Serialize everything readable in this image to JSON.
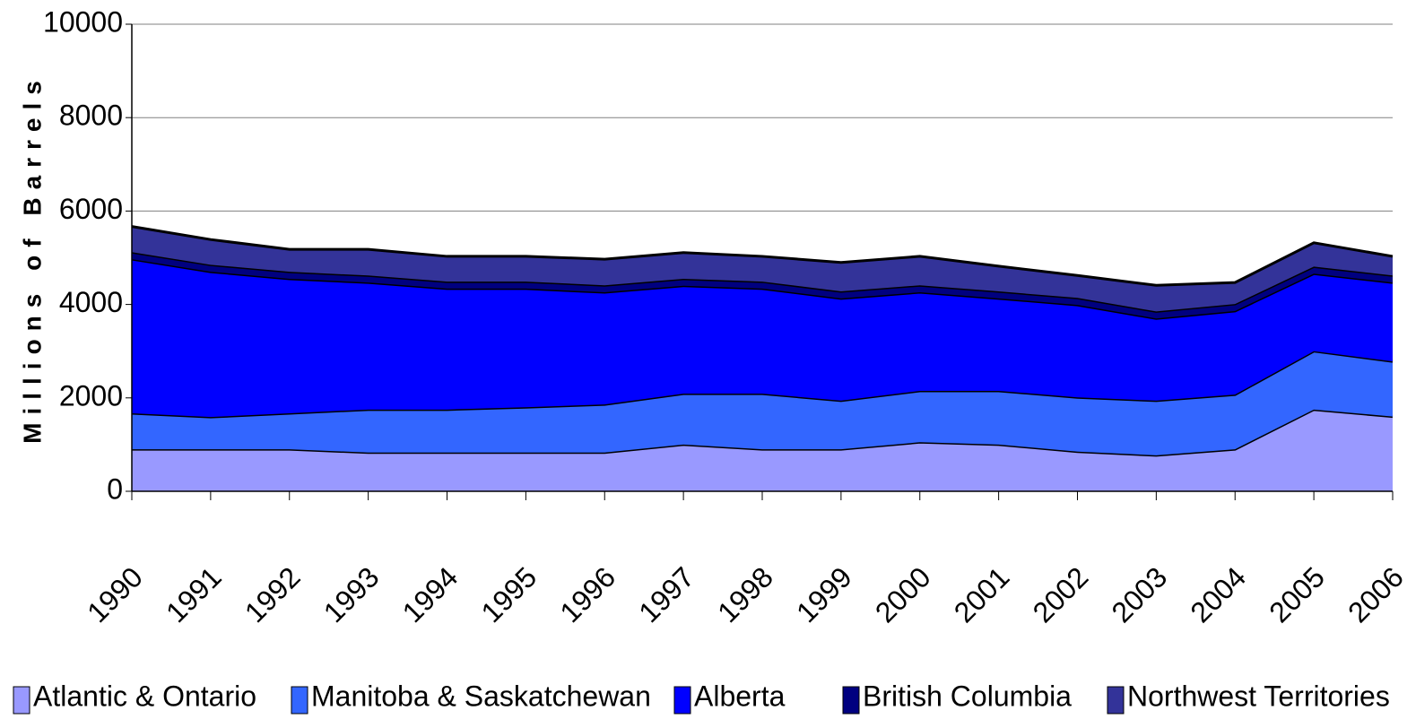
{
  "chart_data": {
    "type": "stacked_area",
    "y_label": "Millions of Barrels",
    "categories": [
      "1990",
      "1991",
      "1992",
      "1993",
      "1994",
      "1995",
      "1996",
      "1997",
      "1998",
      "1999",
      "2000",
      "2001",
      "2002",
      "2003",
      "2004",
      "2005",
      "2006"
    ],
    "series": [
      {
        "name": "Atlantic & Ontario",
        "color": "#9999ff",
        "values": [
          900,
          900,
          900,
          830,
          830,
          830,
          830,
          1000,
          900,
          900,
          1050,
          1000,
          850,
          770,
          900,
          1750,
          1600
        ]
      },
      {
        "name": "Manitoba & Saskatchewan",
        "color": "#3366ff",
        "values": [
          770,
          690,
          770,
          920,
          920,
          970,
          1030,
          1090,
          1190,
          1040,
          1100,
          1150,
          1160,
          1170,
          1170,
          1250,
          1180
        ]
      },
      {
        "name": "Alberta",
        "color": "#0000ff",
        "values": [
          3300,
          3110,
          2880,
          2720,
          2590,
          2540,
          2400,
          2310,
          2250,
          2190,
          2110,
          1980,
          1980,
          1760,
          1790,
          1660,
          1690
        ]
      },
      {
        "name": "British Columbia",
        "color": "#000080",
        "values": [
          150,
          150,
          150,
          150,
          150,
          150,
          150,
          150,
          150,
          150,
          150,
          150,
          150,
          150,
          150,
          150,
          150
        ]
      },
      {
        "name": "Northwest Territories",
        "color": "#333399",
        "values": [
          550,
          540,
          480,
          560,
          540,
          540,
          560,
          560,
          540,
          620,
          620,
          540,
          480,
          560,
          460,
          510,
          410
        ]
      }
    ],
    "ylim": [
      0,
      10000
    ],
    "yticks": [
      0,
      2000,
      4000,
      6000,
      8000,
      10000
    ],
    "grid": true
  }
}
